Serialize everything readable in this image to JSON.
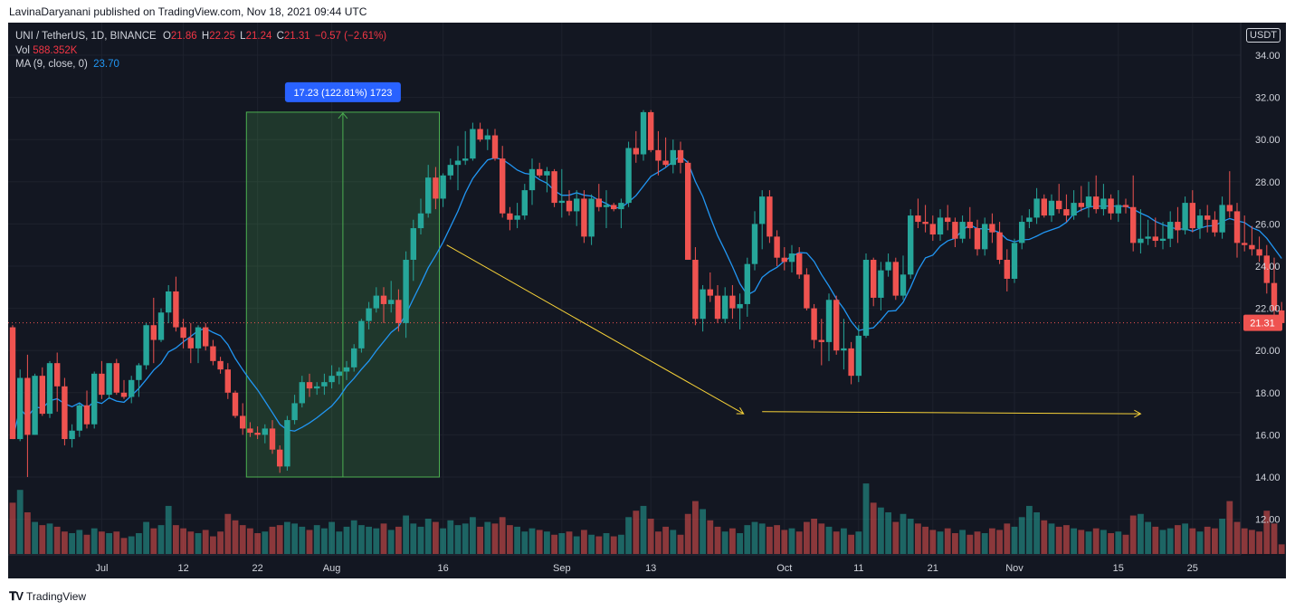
{
  "header": {
    "publisher_line": "LavinaDaryanani published on TradingView.com, Nov 18, 2021 09:44 UTC"
  },
  "legend": {
    "symbol": "UNI / TetherUS, 1D, BINANCE",
    "o_label": "O",
    "o_value": "21.86",
    "h_label": "H",
    "h_value": "22.25",
    "l_label": "L",
    "l_value": "21.24",
    "c_label": "C",
    "c_value": "21.31",
    "change": "−0.57 (−2.61%)",
    "vol_label": "Vol",
    "vol_value": "588.352K",
    "ma_label": "MA (9, close, 0)",
    "ma_value": "23.70"
  },
  "currency": "USDT",
  "footer": {
    "brand": "TradingView"
  },
  "colors": {
    "bg": "#131722",
    "up": "#26a69a",
    "down": "#ef5350",
    "ma": "#2196f3",
    "measure": "#2962ff",
    "trend": "#f7d238"
  },
  "chart_data": {
    "type": "candlestick",
    "yticks": [
      "34.00",
      "32.00",
      "30.00",
      "28.00",
      "26.00",
      "24.00",
      "22.00",
      "20.00",
      "18.00",
      "16.00",
      "14.00",
      "12.00"
    ],
    "ylim": [
      10.6,
      35.0
    ],
    "xticks": [
      {
        "label": "Jul",
        "day": 12
      },
      {
        "label": "12",
        "day": 23
      },
      {
        "label": "22",
        "day": 33
      },
      {
        "label": "Aug",
        "day": 43
      },
      {
        "label": "16",
        "day": 58
      },
      {
        "label": "Sep",
        "day": 74
      },
      {
        "label": "13",
        "day": 86
      },
      {
        "label": "Oct",
        "day": 104
      },
      {
        "label": "11",
        "day": 114
      },
      {
        "label": "21",
        "day": 124
      },
      {
        "label": "Nov",
        "day": 135
      },
      {
        "label": "15",
        "day": 149
      },
      {
        "label": "25",
        "day": 159
      }
    ],
    "last_price": "21.31",
    "measure_label": "17.23 (122.81%) 1723",
    "measure_box": {
      "day_start": 31.5,
      "day_end": 57.5,
      "low": 14.0,
      "high": 31.3
    },
    "trendlines": [
      {
        "from": [
          58.5,
          25.0
        ],
        "to": [
          98.5,
          17.0
        ]
      },
      {
        "from": [
          101,
          17.1
        ],
        "to": [
          152,
          17.0
        ]
      }
    ],
    "candles": [
      [
        21.1,
        21.2,
        15.8,
        15.8,
        3.2
      ],
      [
        15.8,
        19.1,
        15.7,
        18.7,
        4.0
      ],
      [
        18.7,
        19.8,
        14.0,
        16.0,
        2.6
      ],
      [
        16.0,
        18.9,
        16.0,
        18.8,
        2.0
      ],
      [
        18.8,
        19.2,
        16.9,
        17.0,
        1.8
      ],
      [
        17.0,
        19.5,
        16.8,
        19.4,
        1.9
      ],
      [
        19.4,
        19.9,
        17.1,
        18.3,
        1.7
      ],
      [
        18.3,
        18.7,
        15.5,
        15.8,
        1.4
      ],
      [
        15.8,
        16.5,
        15.4,
        16.2,
        1.3
      ],
      [
        16.2,
        17.5,
        15.9,
        17.4,
        1.5
      ],
      [
        17.4,
        18.1,
        16.3,
        16.5,
        1.2
      ],
      [
        16.5,
        19.0,
        16.3,
        18.9,
        1.6
      ],
      [
        18.9,
        19.5,
        17.7,
        17.9,
        1.4
      ],
      [
        17.9,
        19.4,
        17.7,
        19.4,
        1.3
      ],
      [
        19.4,
        19.6,
        17.9,
        18.0,
        1.4
      ],
      [
        18.0,
        18.6,
        17.7,
        17.8,
        1.0
      ],
      [
        17.8,
        18.8,
        17.5,
        18.6,
        1.1
      ],
      [
        18.6,
        19.4,
        17.8,
        19.3,
        1.3
      ],
      [
        19.3,
        21.3,
        19.1,
        21.2,
        2.0
      ],
      [
        21.2,
        22.5,
        19.4,
        20.5,
        1.6
      ],
      [
        20.5,
        22.0,
        20.4,
        21.8,
        1.8
      ],
      [
        21.8,
        23.1,
        21.3,
        22.8,
        3.0
      ],
      [
        22.8,
        23.5,
        20.9,
        21.1,
        1.8
      ],
      [
        21.1,
        21.5,
        20.1,
        20.6,
        1.6
      ],
      [
        20.6,
        21.3,
        19.4,
        20.1,
        1.4
      ],
      [
        20.1,
        21.2,
        19.4,
        21.1,
        1.3
      ],
      [
        21.1,
        21.3,
        20.0,
        20.2,
        1.5
      ],
      [
        20.2,
        20.5,
        19.3,
        19.5,
        1.1
      ],
      [
        19.5,
        19.7,
        18.9,
        19.1,
        1.4
      ],
      [
        19.1,
        19.4,
        17.7,
        18.0,
        2.5
      ],
      [
        18.0,
        18.1,
        16.8,
        16.9,
        2.1
      ],
      [
        16.9,
        17.5,
        16.0,
        16.3,
        1.8
      ],
      [
        16.3,
        16.6,
        15.9,
        16.1,
        1.6
      ],
      [
        16.1,
        16.4,
        15.8,
        16.0,
        1.3
      ],
      [
        16.0,
        16.5,
        15.6,
        16.3,
        1.4
      ],
      [
        16.3,
        16.7,
        15.1,
        15.3,
        1.7
      ],
      [
        15.3,
        15.5,
        14.2,
        14.5,
        1.8
      ],
      [
        14.5,
        16.9,
        14.3,
        16.7,
        2.0
      ],
      [
        16.7,
        17.9,
        16.5,
        17.5,
        1.9
      ],
      [
        17.5,
        18.8,
        17.3,
        18.5,
        1.7
      ],
      [
        18.5,
        18.9,
        17.8,
        18.2,
        1.5
      ],
      [
        18.2,
        18.5,
        17.9,
        18.3,
        1.8
      ],
      [
        18.3,
        18.9,
        17.9,
        18.5,
        1.6
      ],
      [
        18.5,
        19.3,
        18.2,
        18.8,
        2.0
      ],
      [
        18.8,
        19.2,
        18.4,
        19.0,
        1.4
      ],
      [
        19.0,
        19.5,
        18.6,
        19.2,
        1.7
      ],
      [
        19.2,
        20.3,
        19.0,
        20.1,
        2.1
      ],
      [
        20.1,
        21.5,
        19.9,
        21.4,
        1.8
      ],
      [
        21.4,
        22.3,
        21.0,
        22.0,
        1.7
      ],
      [
        22.0,
        23.0,
        21.8,
        22.6,
        1.6
      ],
      [
        22.6,
        23.0,
        21.3,
        22.2,
        1.9
      ],
      [
        22.2,
        23.3,
        21.8,
        22.4,
        1.5
      ],
      [
        22.4,
        22.9,
        20.9,
        21.3,
        1.7
      ],
      [
        21.3,
        24.7,
        20.6,
        24.3,
        2.4
      ],
      [
        24.3,
        26.2,
        23.3,
        25.8,
        1.9
      ],
      [
        25.8,
        27.2,
        25.5,
        26.5,
        1.7
      ],
      [
        26.5,
        28.8,
        26.3,
        28.2,
        2.2
      ],
      [
        28.2,
        28.7,
        26.7,
        27.2,
        2.0
      ],
      [
        27.2,
        28.4,
        26.8,
        28.3,
        1.6
      ],
      [
        28.3,
        29.1,
        28.1,
        28.8,
        2.1
      ],
      [
        28.8,
        29.7,
        27.6,
        29.0,
        1.8
      ],
      [
        29.0,
        30.4,
        28.8,
        29.1,
        1.9
      ],
      [
        29.1,
        30.8,
        29.0,
        30.5,
        2.3
      ],
      [
        30.5,
        30.8,
        29.9,
        30.0,
        1.7
      ],
      [
        30.0,
        30.5,
        29.5,
        30.2,
        2.0
      ],
      [
        30.2,
        30.5,
        29.0,
        29.1,
        1.9
      ],
      [
        29.1,
        29.7,
        26.3,
        26.5,
        2.3
      ],
      [
        26.5,
        26.8,
        25.7,
        26.2,
        1.8
      ],
      [
        26.2,
        27.0,
        25.8,
        26.4,
        1.7
      ],
      [
        26.4,
        27.9,
        26.2,
        27.6,
        1.4
      ],
      [
        27.6,
        29.1,
        26.9,
        28.6,
        1.6
      ],
      [
        28.6,
        28.9,
        28.2,
        28.3,
        1.5
      ],
      [
        28.3,
        28.7,
        27.5,
        28.5,
        1.4
      ],
      [
        28.5,
        28.6,
        26.8,
        27.0,
        1.2
      ],
      [
        27.0,
        28.6,
        26.3,
        27.1,
        1.3
      ],
      [
        27.1,
        27.6,
        26.4,
        26.6,
        1.4
      ],
      [
        26.6,
        27.6,
        25.9,
        27.2,
        1.1
      ],
      [
        27.2,
        27.6,
        25.1,
        25.4,
        1.5
      ],
      [
        25.4,
        27.4,
        25.0,
        27.2,
        1.2
      ],
      [
        27.2,
        27.9,
        26.6,
        26.8,
        1.1
      ],
      [
        26.8,
        27.6,
        25.8,
        26.9,
        1.3
      ],
      [
        26.9,
        27.0,
        26.6,
        26.7,
        1.1
      ],
      [
        26.7,
        27.2,
        25.8,
        27.0,
        1.2
      ],
      [
        27.0,
        29.9,
        26.8,
        29.6,
        2.3
      ],
      [
        29.6,
        30.4,
        28.9,
        29.3,
        2.7
      ],
      [
        29.3,
        31.4,
        29.0,
        31.3,
        3.0
      ],
      [
        31.3,
        31.4,
        29.4,
        29.5,
        2.2
      ],
      [
        29.5,
        30.4,
        28.3,
        29.0,
        1.4
      ],
      [
        29.0,
        30.1,
        28.7,
        28.8,
        1.7
      ],
      [
        28.8,
        30.0,
        28.4,
        29.5,
        1.5
      ],
      [
        29.5,
        29.9,
        28.4,
        28.9,
        1.2
      ],
      [
        28.9,
        29.0,
        24.3,
        24.3,
        2.5
      ],
      [
        24.3,
        24.9,
        21.2,
        21.5,
        3.3
      ],
      [
        21.5,
        23.1,
        20.9,
        22.9,
        2.8
      ],
      [
        22.9,
        23.7,
        22.3,
        22.6,
        2.1
      ],
      [
        22.6,
        23.1,
        21.3,
        21.5,
        1.7
      ],
      [
        21.5,
        23.0,
        21.3,
        22.6,
        1.4
      ],
      [
        22.6,
        23.1,
        21.5,
        22.0,
        1.6
      ],
      [
        22.0,
        22.7,
        21.0,
        22.2,
        1.3
      ],
      [
        22.2,
        24.4,
        21.6,
        24.1,
        1.8
      ],
      [
        24.1,
        26.6,
        23.8,
        26.0,
        2.0
      ],
      [
        26.0,
        27.6,
        24.8,
        27.3,
        1.9
      ],
      [
        27.3,
        27.6,
        25.1,
        25.4,
        1.7
      ],
      [
        25.4,
        25.7,
        24.0,
        24.4,
        1.8
      ],
      [
        24.4,
        24.9,
        23.8,
        24.2,
        1.5
      ],
      [
        24.2,
        25.0,
        23.7,
        24.6,
        1.6
      ],
      [
        24.6,
        24.9,
        23.4,
        23.6,
        1.4
      ],
      [
        23.6,
        23.9,
        21.9,
        22.0,
        2.0
      ],
      [
        22.0,
        22.2,
        20.1,
        20.5,
        2.2
      ],
      [
        20.5,
        21.5,
        19.3,
        20.4,
        1.9
      ],
      [
        20.4,
        22.7,
        19.5,
        22.4,
        1.7
      ],
      [
        22.4,
        22.6,
        19.8,
        20.0,
        1.4
      ],
      [
        20.0,
        21.5,
        19.1,
        20.1,
        1.6
      ],
      [
        20.1,
        20.4,
        18.4,
        18.8,
        1.2
      ],
      [
        18.8,
        21.2,
        18.5,
        20.7,
        1.4
      ],
      [
        20.7,
        24.6,
        20.6,
        24.3,
        4.4
      ],
      [
        24.3,
        24.4,
        22.1,
        22.5,
        3.2
      ],
      [
        22.5,
        24.2,
        21.9,
        23.8,
        2.9
      ],
      [
        23.8,
        24.6,
        23.5,
        24.2,
        2.6
      ],
      [
        24.2,
        24.4,
        22.4,
        22.6,
        2.0
      ],
      [
        22.6,
        24.5,
        22.4,
        23.6,
        2.5
      ],
      [
        23.6,
        26.7,
        23.4,
        26.4,
        2.2
      ],
      [
        26.4,
        27.2,
        25.8,
        26.1,
        1.9
      ],
      [
        26.1,
        26.9,
        25.6,
        26.0,
        1.7
      ],
      [
        26.0,
        26.4,
        25.2,
        25.5,
        1.5
      ],
      [
        25.5,
        26.7,
        25.2,
        26.3,
        1.4
      ],
      [
        26.3,
        26.9,
        25.7,
        26.1,
        1.6
      ],
      [
        26.1,
        26.3,
        24.9,
        25.3,
        1.3
      ],
      [
        25.3,
        26.4,
        25.1,
        26.1,
        1.5
      ],
      [
        26.1,
        26.8,
        25.3,
        25.8,
        1.2
      ],
      [
        25.8,
        26.2,
        24.5,
        24.8,
        1.4
      ],
      [
        24.8,
        26.3,
        24.5,
        26.0,
        1.3
      ],
      [
        26.0,
        26.5,
        25.1,
        25.6,
        1.6
      ],
      [
        25.6,
        26.1,
        24.1,
        24.3,
        1.5
      ],
      [
        24.3,
        24.8,
        22.8,
        23.4,
        1.9
      ],
      [
        23.4,
        25.3,
        23.2,
        25.1,
        1.7
      ],
      [
        25.1,
        26.4,
        24.8,
        26.1,
        2.3
      ],
      [
        26.1,
        26.7,
        25.8,
        26.3,
        3.0
      ],
      [
        26.3,
        27.7,
        26.0,
        27.2,
        2.6
      ],
      [
        27.2,
        27.4,
        26.3,
        26.4,
        2.1
      ],
      [
        26.4,
        27.4,
        26.1,
        27.1,
        1.9
      ],
      [
        27.1,
        27.9,
        26.5,
        26.7,
        1.7
      ],
      [
        26.7,
        27.4,
        26.1,
        26.4,
        1.8
      ],
      [
        26.4,
        27.6,
        26.2,
        27.0,
        1.6
      ],
      [
        27.0,
        27.8,
        26.6,
        26.8,
        1.5
      ],
      [
        26.8,
        28.0,
        26.3,
        27.3,
        1.4
      ],
      [
        27.3,
        28.3,
        26.5,
        26.7,
        1.6
      ],
      [
        26.7,
        27.9,
        26.4,
        27.2,
        1.5
      ],
      [
        27.2,
        27.4,
        26.2,
        26.5,
        1.3
      ],
      [
        26.5,
        27.6,
        26.1,
        26.9,
        1.4
      ],
      [
        26.9,
        27.2,
        26.5,
        26.8,
        1.2
      ],
      [
        26.8,
        28.3,
        24.7,
        25.1,
        2.4
      ],
      [
        25.1,
        26.7,
        24.6,
        25.3,
        2.5
      ],
      [
        25.3,
        26.2,
        25.0,
        25.4,
        2.0
      ],
      [
        25.4,
        26.3,
        24.9,
        25.2,
        1.7
      ],
      [
        25.2,
        26.1,
        24.8,
        25.3,
        1.5
      ],
      [
        25.3,
        26.6,
        24.9,
        26.1,
        1.6
      ],
      [
        26.1,
        26.8,
        25.1,
        25.7,
        1.8
      ],
      [
        25.7,
        27.3,
        25.5,
        27.0,
        1.9
      ],
      [
        27.0,
        27.6,
        25.6,
        25.8,
        1.6
      ],
      [
        25.8,
        26.7,
        25.3,
        26.4,
        1.4
      ],
      [
        26.4,
        26.9,
        25.6,
        26.2,
        1.7
      ],
      [
        26.2,
        26.6,
        25.4,
        25.6,
        1.6
      ],
      [
        25.6,
        27.3,
        25.3,
        26.9,
        2.2
      ],
      [
        26.9,
        28.5,
        26.3,
        26.6,
        3.3
      ],
      [
        26.6,
        27.0,
        24.4,
        25.1,
        2.0
      ],
      [
        25.1,
        26.4,
        24.7,
        25.0,
        1.6
      ],
      [
        25.0,
        25.9,
        24.5,
        24.8,
        1.5
      ],
      [
        24.8,
        25.4,
        24.2,
        24.5,
        1.4
      ],
      [
        24.5,
        25.0,
        22.7,
        23.2,
        2.7
      ],
      [
        23.2,
        24.4,
        21.0,
        21.9,
        1.9
      ],
      [
        21.9,
        22.3,
        21.2,
        21.3,
        0.6
      ]
    ]
  }
}
